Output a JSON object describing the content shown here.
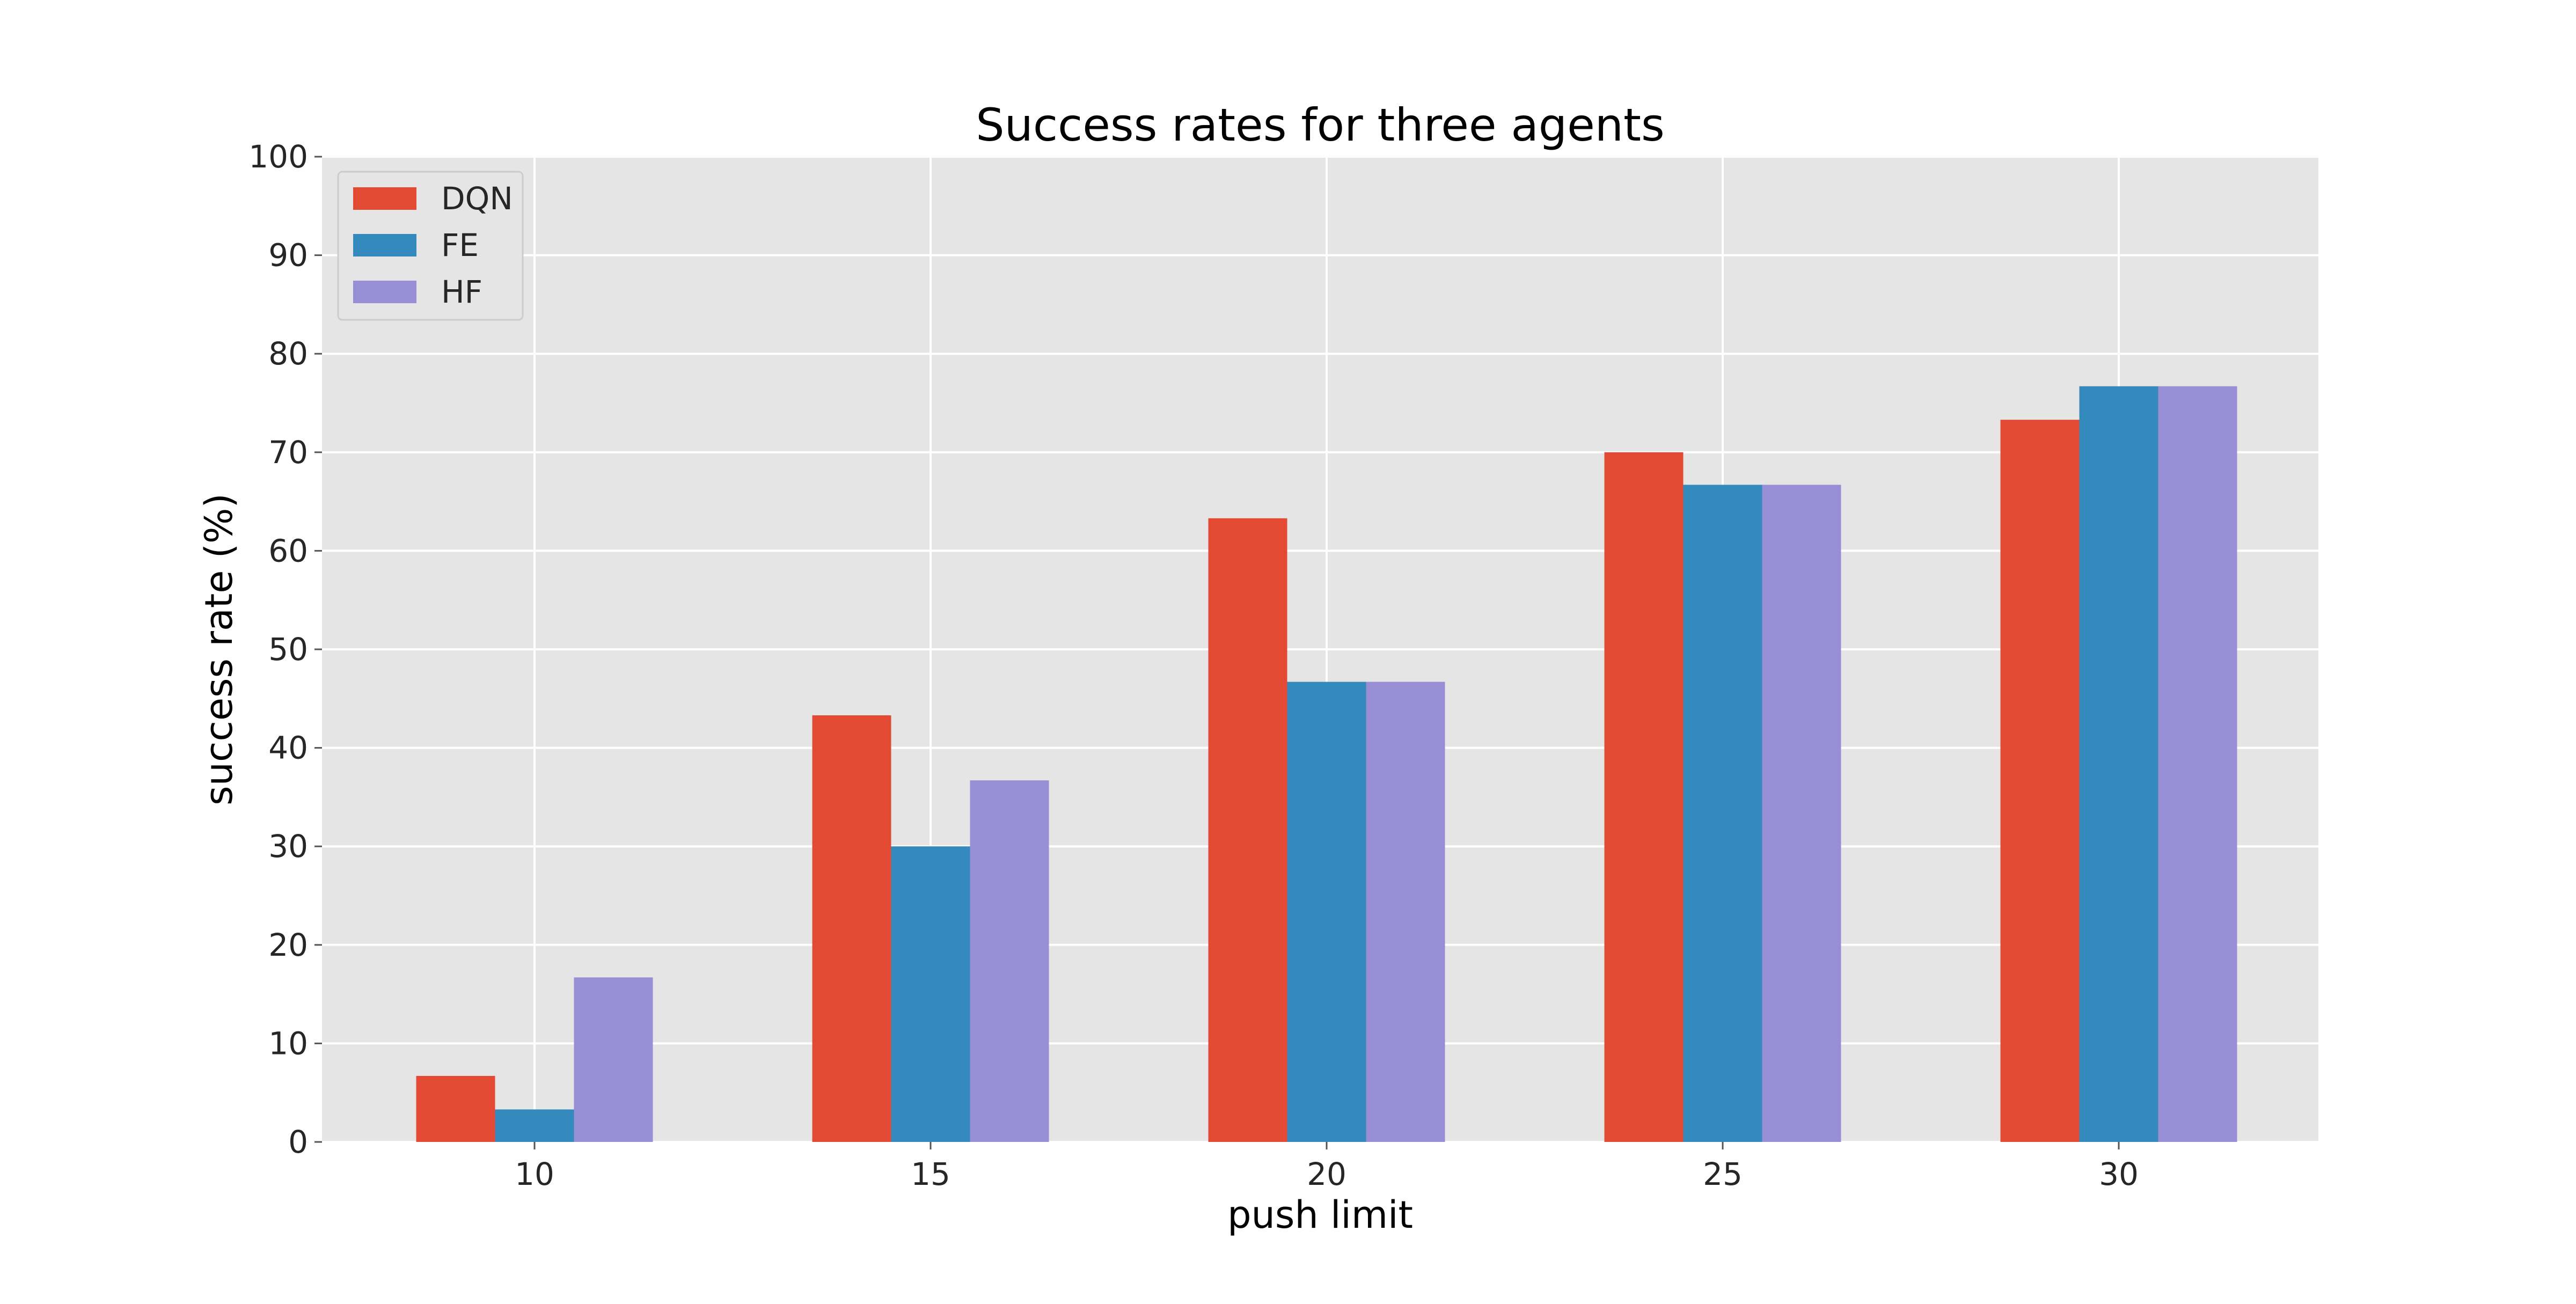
{
  "chart_data": {
    "type": "bar",
    "title": "Success rates for three agents",
    "xlabel": "push limit",
    "ylabel": "success rate (%)",
    "categories": [
      "10",
      "15",
      "20",
      "25",
      "30"
    ],
    "series": [
      {
        "name": "DQN",
        "color": "#E24A33",
        "values": [
          6.7,
          43.3,
          63.3,
          70.0,
          73.3
        ]
      },
      {
        "name": "FE",
        "color": "#348ABD",
        "values": [
          3.3,
          30.0,
          46.7,
          66.7,
          76.7
        ]
      },
      {
        "name": "HF",
        "color": "#988ED5",
        "values": [
          16.7,
          36.7,
          46.7,
          66.7,
          76.7
        ]
      }
    ],
    "ylim": [
      0,
      100
    ],
    "yticks": [
      0,
      10,
      20,
      30,
      40,
      50,
      60,
      70,
      80,
      90,
      100
    ],
    "grid": true,
    "legend_position": "top-left",
    "background_color": "#E5E5E5"
  }
}
